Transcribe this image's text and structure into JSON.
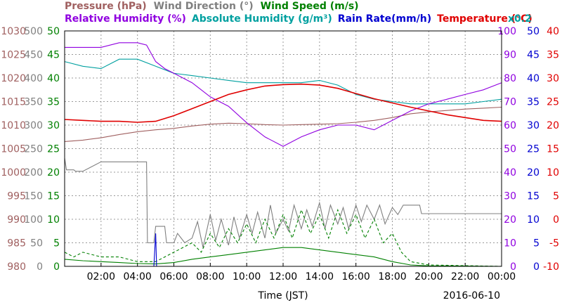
{
  "chart_data": {
    "type": "line",
    "date_label": "2016-06-10",
    "xlabel": "Time (JST)",
    "x_ticks": [
      "02:00",
      "04:00",
      "06:00",
      "08:00",
      "10:00",
      "12:00",
      "14:00",
      "16:00",
      "18:00",
      "20:00",
      "22:00",
      "00:00"
    ],
    "x_range_hours": [
      0,
      24
    ],
    "grid": true,
    "legend_row1": [
      {
        "label": "Pressure (hPa)",
        "color": "#a06060"
      },
      {
        "label": "Wind Direction (°)",
        "color": "#808080"
      },
      {
        "label": "Wind Speed (m/s)",
        "color": "#008000"
      }
    ],
    "legend_row2": [
      {
        "label": "Relative Humidity (%)",
        "color": "#9000e0"
      },
      {
        "label": "Absolute Humidity (g/m³)",
        "color": "#00a0a0"
      },
      {
        "label": "Rain Rate(mm/h)",
        "color": "#0000d0"
      },
      {
        "label": "Temperature (°C)",
        "color": "#e00000"
      }
    ],
    "abs_humidity_scale_note": "x0.2",
    "axes": {
      "pressure": {
        "color": "#a06060",
        "ticks": [
          "980",
          "985",
          "990",
          "995",
          "1000",
          "1005",
          "1010",
          "1015",
          "1020",
          "1025",
          "1030"
        ]
      },
      "wind_direction": {
        "color": "#808080",
        "ticks": [
          "0",
          "50",
          "100",
          "150",
          "200",
          "250",
          "300",
          "350",
          "400",
          "450",
          "500"
        ]
      },
      "wind_speed": {
        "color": "#008000",
        "ticks": [
          "0",
          "5",
          "10",
          "15",
          "20",
          "25",
          "30",
          "35",
          "40",
          "45",
          "50"
        ]
      },
      "humidity": {
        "color": "#9000e0",
        "ticks": [
          "0",
          "10",
          "20",
          "30",
          "40",
          "50",
          "60",
          "70",
          "80",
          "90",
          "100"
        ]
      },
      "rain": {
        "color": "#0000d0",
        "ticks": [
          "0",
          "5",
          "10",
          "15",
          "20",
          "25",
          "30",
          "35",
          "40",
          "45",
          "50"
        ]
      },
      "temperature": {
        "color": "#e00000",
        "ticks": [
          "-10",
          "-5",
          "0",
          "5",
          "10",
          "15",
          "20",
          "25",
          "30",
          "35",
          "40"
        ]
      }
    },
    "series": [
      {
        "key": "pressure",
        "color": "#a06060",
        "unit": "hPa",
        "range": [
          980,
          1030
        ],
        "points": [
          [
            0,
            1006.5
          ],
          [
            1,
            1006.8
          ],
          [
            2,
            1007.3
          ],
          [
            3,
            1008
          ],
          [
            4,
            1008.6
          ],
          [
            5,
            1009
          ],
          [
            6,
            1009.3
          ],
          [
            7,
            1009.8
          ],
          [
            8,
            1010.2
          ],
          [
            9,
            1010.4
          ],
          [
            10,
            1010.3
          ],
          [
            11,
            1010.1
          ],
          [
            12,
            1010
          ],
          [
            13,
            1010.1
          ],
          [
            14,
            1010.2
          ],
          [
            15,
            1010.3
          ],
          [
            16,
            1010.6
          ],
          [
            17,
            1011
          ],
          [
            18,
            1011.6
          ],
          [
            19,
            1012.4
          ],
          [
            20,
            1012.8
          ],
          [
            21,
            1013.1
          ],
          [
            22,
            1013.4
          ],
          [
            23,
            1013.6
          ],
          [
            24,
            1013.8
          ]
        ]
      },
      {
        "key": "wind_direction",
        "color": "#808080",
        "unit": "°",
        "range": [
          0,
          500
        ],
        "points": [
          [
            0,
            230
          ],
          [
            0.1,
            205
          ],
          [
            0.5,
            205
          ],
          [
            0.6,
            202
          ],
          [
            1,
            202
          ],
          [
            2,
            222
          ],
          [
            3,
            222
          ],
          [
            4,
            222
          ],
          [
            4.5,
            222
          ],
          [
            4.55,
            50
          ],
          [
            4.9,
            50
          ],
          [
            5,
            85
          ],
          [
            5.5,
            85
          ],
          [
            5.6,
            50
          ],
          [
            6,
            50
          ],
          [
            6.2,
            70
          ],
          [
            6.6,
            50
          ],
          [
            7,
            60
          ],
          [
            7.3,
            95
          ],
          [
            7.6,
            40
          ],
          [
            8,
            110
          ],
          [
            8.3,
            55
          ],
          [
            8.6,
            100
          ],
          [
            9,
            45
          ],
          [
            9.3,
            105
          ],
          [
            9.6,
            60
          ],
          [
            10,
            110
          ],
          [
            10.3,
            70
          ],
          [
            10.6,
            115
          ],
          [
            11,
            60
          ],
          [
            11.3,
            130
          ],
          [
            11.6,
            70
          ],
          [
            12,
            100
          ],
          [
            12.3,
            75
          ],
          [
            12.6,
            130
          ],
          [
            13,
            80
          ],
          [
            13.3,
            120
          ],
          [
            13.6,
            85
          ],
          [
            14,
            135
          ],
          [
            14.3,
            80
          ],
          [
            14.6,
            130
          ],
          [
            15,
            90
          ],
          [
            15.3,
            125
          ],
          [
            15.6,
            80
          ],
          [
            16,
            130
          ],
          [
            16.3,
            95
          ],
          [
            16.6,
            130
          ],
          [
            17,
            100
          ],
          [
            17.3,
            130
          ],
          [
            17.6,
            90
          ],
          [
            18,
            125
          ],
          [
            18.3,
            110
          ],
          [
            18.6,
            130
          ],
          [
            19,
            130
          ],
          [
            19.5,
            130
          ],
          [
            19.6,
            112
          ],
          [
            21,
            112
          ],
          [
            24,
            112
          ]
        ]
      },
      {
        "key": "wind_speed",
        "color": "#008000",
        "unit": "m/s",
        "range": [
          0,
          50
        ],
        "dashed": false,
        "points": [
          [
            0,
            1.5
          ],
          [
            1,
            1.2
          ],
          [
            2,
            1
          ],
          [
            3,
            0.8
          ],
          [
            4,
            0.6
          ],
          [
            5,
            0.5
          ],
          [
            6,
            0.8
          ],
          [
            7,
            1.5
          ],
          [
            8,
            2
          ],
          [
            9,
            2.5
          ],
          [
            10,
            3
          ],
          [
            11,
            3.5
          ],
          [
            12,
            4
          ],
          [
            13,
            4
          ],
          [
            14,
            3.5
          ],
          [
            15,
            3
          ],
          [
            16,
            2.5
          ],
          [
            17,
            2
          ],
          [
            18,
            1
          ],
          [
            19,
            0.3
          ],
          [
            20,
            0.1
          ],
          [
            24,
            0
          ]
        ]
      },
      {
        "key": "wind_gust",
        "color": "#008000",
        "unit": "m/s",
        "range": [
          0,
          50
        ],
        "dashed": true,
        "points": [
          [
            0,
            3
          ],
          [
            0.5,
            2
          ],
          [
            1,
            3
          ],
          [
            2,
            2
          ],
          [
            3,
            2
          ],
          [
            4,
            1
          ],
          [
            5,
            1
          ],
          [
            6,
            3
          ],
          [
            7,
            5
          ],
          [
            7.5,
            3
          ],
          [
            8,
            7
          ],
          [
            8.5,
            4
          ],
          [
            9,
            8
          ],
          [
            9.5,
            5
          ],
          [
            10,
            9
          ],
          [
            10.5,
            5
          ],
          [
            11,
            10
          ],
          [
            11.5,
            6
          ],
          [
            12,
            11
          ],
          [
            12.5,
            6
          ],
          [
            13,
            12
          ],
          [
            13.5,
            7
          ],
          [
            14,
            11
          ],
          [
            14.5,
            6
          ],
          [
            15,
            12
          ],
          [
            15.5,
            7
          ],
          [
            16,
            11
          ],
          [
            16.5,
            6
          ],
          [
            17,
            10
          ],
          [
            17.5,
            5
          ],
          [
            18,
            7
          ],
          [
            18.5,
            3
          ],
          [
            19,
            1
          ],
          [
            20,
            0.3
          ],
          [
            24,
            0
          ]
        ]
      },
      {
        "key": "relative_humidity",
        "color": "#9000e0",
        "unit": "%",
        "range": [
          0,
          100
        ],
        "points": [
          [
            0,
            93
          ],
          [
            1,
            93
          ],
          [
            2,
            93
          ],
          [
            3,
            95
          ],
          [
            4,
            95
          ],
          [
            4.5,
            94
          ],
          [
            5,
            87
          ],
          [
            5.5,
            84
          ],
          [
            6,
            82
          ],
          [
            7,
            78
          ],
          [
            8,
            72
          ],
          [
            9,
            68
          ],
          [
            10,
            61
          ],
          [
            11,
            55
          ],
          [
            12,
            51
          ],
          [
            13,
            55
          ],
          [
            14,
            58
          ],
          [
            15,
            60
          ],
          [
            16,
            60
          ],
          [
            17,
            58
          ],
          [
            18,
            62
          ],
          [
            19,
            66
          ],
          [
            20,
            69
          ],
          [
            21,
            71
          ],
          [
            22,
            73
          ],
          [
            23,
            75
          ],
          [
            24,
            78
          ]
        ]
      },
      {
        "key": "absolute_humidity",
        "color": "#00a0a0",
        "unit": "g/m³ x0.2",
        "range": [
          0,
          100
        ],
        "points": [
          [
            0,
            87
          ],
          [
            1,
            85
          ],
          [
            2,
            84
          ],
          [
            3,
            88
          ],
          [
            4,
            88
          ],
          [
            5,
            85
          ],
          [
            6,
            82
          ],
          [
            7,
            81
          ],
          [
            8,
            80
          ],
          [
            9,
            79
          ],
          [
            10,
            78
          ],
          [
            11,
            78
          ],
          [
            12,
            78
          ],
          [
            13,
            78
          ],
          [
            14,
            79
          ],
          [
            15,
            77
          ],
          [
            16,
            73
          ],
          [
            17,
            71
          ],
          [
            18,
            70
          ],
          [
            19,
            69
          ],
          [
            20,
            69
          ],
          [
            21,
            69
          ],
          [
            22,
            69
          ],
          [
            23,
            70
          ],
          [
            24,
            71
          ]
        ]
      },
      {
        "key": "rain_rate",
        "color": "#0000d0",
        "unit": "mm/h",
        "range": [
          0,
          50
        ],
        "points": [
          [
            0,
            0
          ],
          [
            4.9,
            0
          ],
          [
            5,
            7
          ],
          [
            5.05,
            0
          ],
          [
            24,
            0
          ]
        ]
      },
      {
        "key": "temperature",
        "color": "#e00000",
        "unit": "°C",
        "range": [
          -10,
          40
        ],
        "points": [
          [
            0,
            21.2
          ],
          [
            1,
            21
          ],
          [
            2,
            20.8
          ],
          [
            3,
            20.8
          ],
          [
            4,
            20.6
          ],
          [
            5,
            20.8
          ],
          [
            6,
            22
          ],
          [
            7,
            23.5
          ],
          [
            8,
            25
          ],
          [
            9,
            26.5
          ],
          [
            10,
            27.5
          ],
          [
            11,
            28.3
          ],
          [
            12,
            28.6
          ],
          [
            13,
            28.7
          ],
          [
            14,
            28.5
          ],
          [
            15,
            27.8
          ],
          [
            16,
            26.7
          ],
          [
            17,
            25.6
          ],
          [
            18,
            24.7
          ],
          [
            19,
            23.8
          ],
          [
            20,
            23
          ],
          [
            21,
            22.2
          ],
          [
            22,
            21.6
          ],
          [
            23,
            21
          ],
          [
            24,
            20.8
          ]
        ]
      }
    ]
  }
}
